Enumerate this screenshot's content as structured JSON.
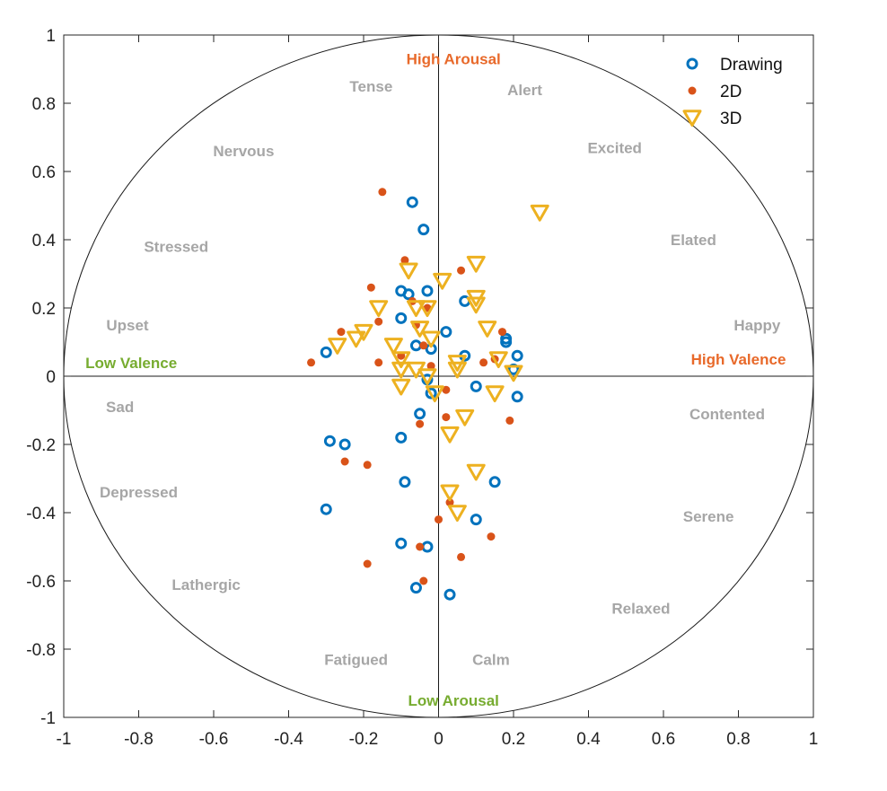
{
  "chart_data": {
    "type": "scatter",
    "title": "",
    "xlabel": "",
    "ylabel": "",
    "xlim": [
      -1,
      1
    ],
    "ylim": [
      -1,
      1
    ],
    "grid": false,
    "unit_circle": true,
    "legend_position": "top-right",
    "x_ticks": [
      {
        "value": -1,
        "label": "-1"
      },
      {
        "value": -0.8,
        "label": "-0.8"
      },
      {
        "value": -0.6,
        "label": "-0.6"
      },
      {
        "value": -0.4,
        "label": "-0.4"
      },
      {
        "value": -0.2,
        "label": "-0.2"
      },
      {
        "value": 0,
        "label": "0"
      },
      {
        "value": 0.2,
        "label": "0.2"
      },
      {
        "value": 0.4,
        "label": "0.4"
      },
      {
        "value": 0.6,
        "label": "0.6"
      },
      {
        "value": 0.8,
        "label": "0.8"
      },
      {
        "value": 1,
        "label": "1"
      }
    ],
    "y_ticks": [
      {
        "value": 1,
        "label": "1"
      },
      {
        "value": 0.8,
        "label": "0.8"
      },
      {
        "value": 0.6,
        "label": "0.6"
      },
      {
        "value": 0.4,
        "label": "0.4"
      },
      {
        "value": 0.2,
        "label": "0.2"
      },
      {
        "value": 0,
        "label": "0"
      },
      {
        "value": -0.2,
        "label": "-0.2"
      },
      {
        "value": -0.4,
        "label": "-0.4"
      },
      {
        "value": -0.6,
        "label": "-0.6"
      },
      {
        "value": -0.8,
        "label": "-0.8"
      },
      {
        "value": -1,
        "label": "-1"
      }
    ],
    "annotations": [
      {
        "text": "High Arousal",
        "x": 0.04,
        "y": 0.93,
        "kind": "high"
      },
      {
        "text": "Low Arousal",
        "x": 0.04,
        "y": -0.95,
        "kind": "low"
      },
      {
        "text": "High Valence",
        "x": 0.8,
        "y": 0.05,
        "kind": "high"
      },
      {
        "text": "Low Valence",
        "x": -0.82,
        "y": 0.04,
        "kind": "low"
      },
      {
        "text": "Tense",
        "x": -0.18,
        "y": 0.85,
        "kind": "emotion"
      },
      {
        "text": "Alert",
        "x": 0.23,
        "y": 0.84,
        "kind": "emotion"
      },
      {
        "text": "Nervous",
        "x": -0.52,
        "y": 0.66,
        "kind": "emotion"
      },
      {
        "text": "Excited",
        "x": 0.47,
        "y": 0.67,
        "kind": "emotion"
      },
      {
        "text": "Stressed",
        "x": -0.7,
        "y": 0.38,
        "kind": "emotion"
      },
      {
        "text": "Elated",
        "x": 0.68,
        "y": 0.4,
        "kind": "emotion"
      },
      {
        "text": "Upset",
        "x": -0.83,
        "y": 0.15,
        "kind": "emotion"
      },
      {
        "text": "Happy",
        "x": 0.85,
        "y": 0.15,
        "kind": "emotion"
      },
      {
        "text": "Sad",
        "x": -0.85,
        "y": -0.09,
        "kind": "emotion"
      },
      {
        "text": "Contented",
        "x": 0.77,
        "y": -0.11,
        "kind": "emotion"
      },
      {
        "text": "Depressed",
        "x": -0.8,
        "y": -0.34,
        "kind": "emotion"
      },
      {
        "text": "Serene",
        "x": 0.72,
        "y": -0.41,
        "kind": "emotion"
      },
      {
        "text": "Lathergic",
        "x": -0.62,
        "y": -0.61,
        "kind": "emotion"
      },
      {
        "text": "Relaxed",
        "x": 0.54,
        "y": -0.68,
        "kind": "emotion"
      },
      {
        "text": "Fatigued",
        "x": -0.22,
        "y": -0.83,
        "kind": "emotion"
      },
      {
        "text": "Calm",
        "x": 0.14,
        "y": -0.83,
        "kind": "emotion"
      }
    ],
    "series": [
      {
        "name": "Drawing",
        "marker": "circle",
        "color": "#0072BD",
        "points": [
          [
            -0.07,
            0.51
          ],
          [
            -0.04,
            0.43
          ],
          [
            -0.1,
            0.25
          ],
          [
            -0.03,
            0.25
          ],
          [
            -0.08,
            0.24
          ],
          [
            -0.1,
            0.17
          ],
          [
            0.07,
            0.22
          ],
          [
            0.02,
            0.13
          ],
          [
            -0.06,
            0.09
          ],
          [
            -0.02,
            0.08
          ],
          [
            -0.3,
            0.07
          ],
          [
            0.07,
            0.06
          ],
          [
            0.18,
            0.11
          ],
          [
            0.18,
            0.1
          ],
          [
            0.21,
            0.06
          ],
          [
            0.2,
            0.02
          ],
          [
            -0.03,
            -0.01
          ],
          [
            0.1,
            -0.03
          ],
          [
            -0.02,
            -0.05
          ],
          [
            0.21,
            -0.06
          ],
          [
            -0.05,
            -0.11
          ],
          [
            -0.1,
            -0.18
          ],
          [
            -0.29,
            -0.19
          ],
          [
            -0.25,
            -0.2
          ],
          [
            -0.09,
            -0.31
          ],
          [
            0.15,
            -0.31
          ],
          [
            -0.3,
            -0.39
          ],
          [
            0.1,
            -0.42
          ],
          [
            -0.1,
            -0.49
          ],
          [
            -0.03,
            -0.5
          ],
          [
            -0.06,
            -0.62
          ],
          [
            0.03,
            -0.64
          ]
        ]
      },
      {
        "name": "2D",
        "marker": "dot",
        "color": "#D95319",
        "points": [
          [
            -0.15,
            0.54
          ],
          [
            -0.09,
            0.34
          ],
          [
            0.06,
            0.31
          ],
          [
            -0.18,
            0.26
          ],
          [
            -0.07,
            0.22
          ],
          [
            -0.03,
            0.2
          ],
          [
            -0.16,
            0.16
          ],
          [
            -0.06,
            0.15
          ],
          [
            -0.26,
            0.13
          ],
          [
            0.17,
            0.13
          ],
          [
            -0.04,
            0.09
          ],
          [
            -0.1,
            0.06
          ],
          [
            -0.34,
            0.04
          ],
          [
            -0.16,
            0.04
          ],
          [
            0.12,
            0.04
          ],
          [
            0.15,
            0.05
          ],
          [
            -0.02,
            0.03
          ],
          [
            0.02,
            -0.04
          ],
          [
            0.02,
            -0.12
          ],
          [
            -0.05,
            -0.14
          ],
          [
            0.19,
            -0.13
          ],
          [
            -0.25,
            -0.25
          ],
          [
            -0.19,
            -0.26
          ],
          [
            0.03,
            -0.37
          ],
          [
            0.0,
            -0.42
          ],
          [
            0.14,
            -0.47
          ],
          [
            -0.05,
            -0.5
          ],
          [
            0.06,
            -0.53
          ],
          [
            -0.19,
            -0.55
          ],
          [
            -0.04,
            -0.6
          ]
        ]
      },
      {
        "name": "3D",
        "marker": "triangle-down",
        "color": "#EDB120",
        "points": [
          [
            0.27,
            0.48
          ],
          [
            0.1,
            0.33
          ],
          [
            -0.08,
            0.31
          ],
          [
            0.01,
            0.28
          ],
          [
            0.1,
            0.23
          ],
          [
            0.1,
            0.21
          ],
          [
            -0.06,
            0.2
          ],
          [
            -0.03,
            0.2
          ],
          [
            -0.16,
            0.2
          ],
          [
            -0.2,
            0.13
          ],
          [
            -0.22,
            0.11
          ],
          [
            -0.05,
            0.14
          ],
          [
            0.13,
            0.14
          ],
          [
            -0.02,
            0.11
          ],
          [
            -0.27,
            0.09
          ],
          [
            -0.12,
            0.09
          ],
          [
            -0.1,
            0.05
          ],
          [
            0.16,
            0.05
          ],
          [
            0.05,
            0.04
          ],
          [
            -0.06,
            0.02
          ],
          [
            0.05,
            0.02
          ],
          [
            -0.1,
            0.02
          ],
          [
            0.2,
            0.01
          ],
          [
            -0.03,
            0.0
          ],
          [
            -0.1,
            -0.03
          ],
          [
            0.15,
            -0.05
          ],
          [
            -0.01,
            -0.05
          ],
          [
            0.07,
            -0.12
          ],
          [
            0.03,
            -0.17
          ],
          [
            0.1,
            -0.28
          ],
          [
            0.03,
            -0.34
          ],
          [
            0.05,
            -0.4
          ]
        ]
      }
    ]
  }
}
